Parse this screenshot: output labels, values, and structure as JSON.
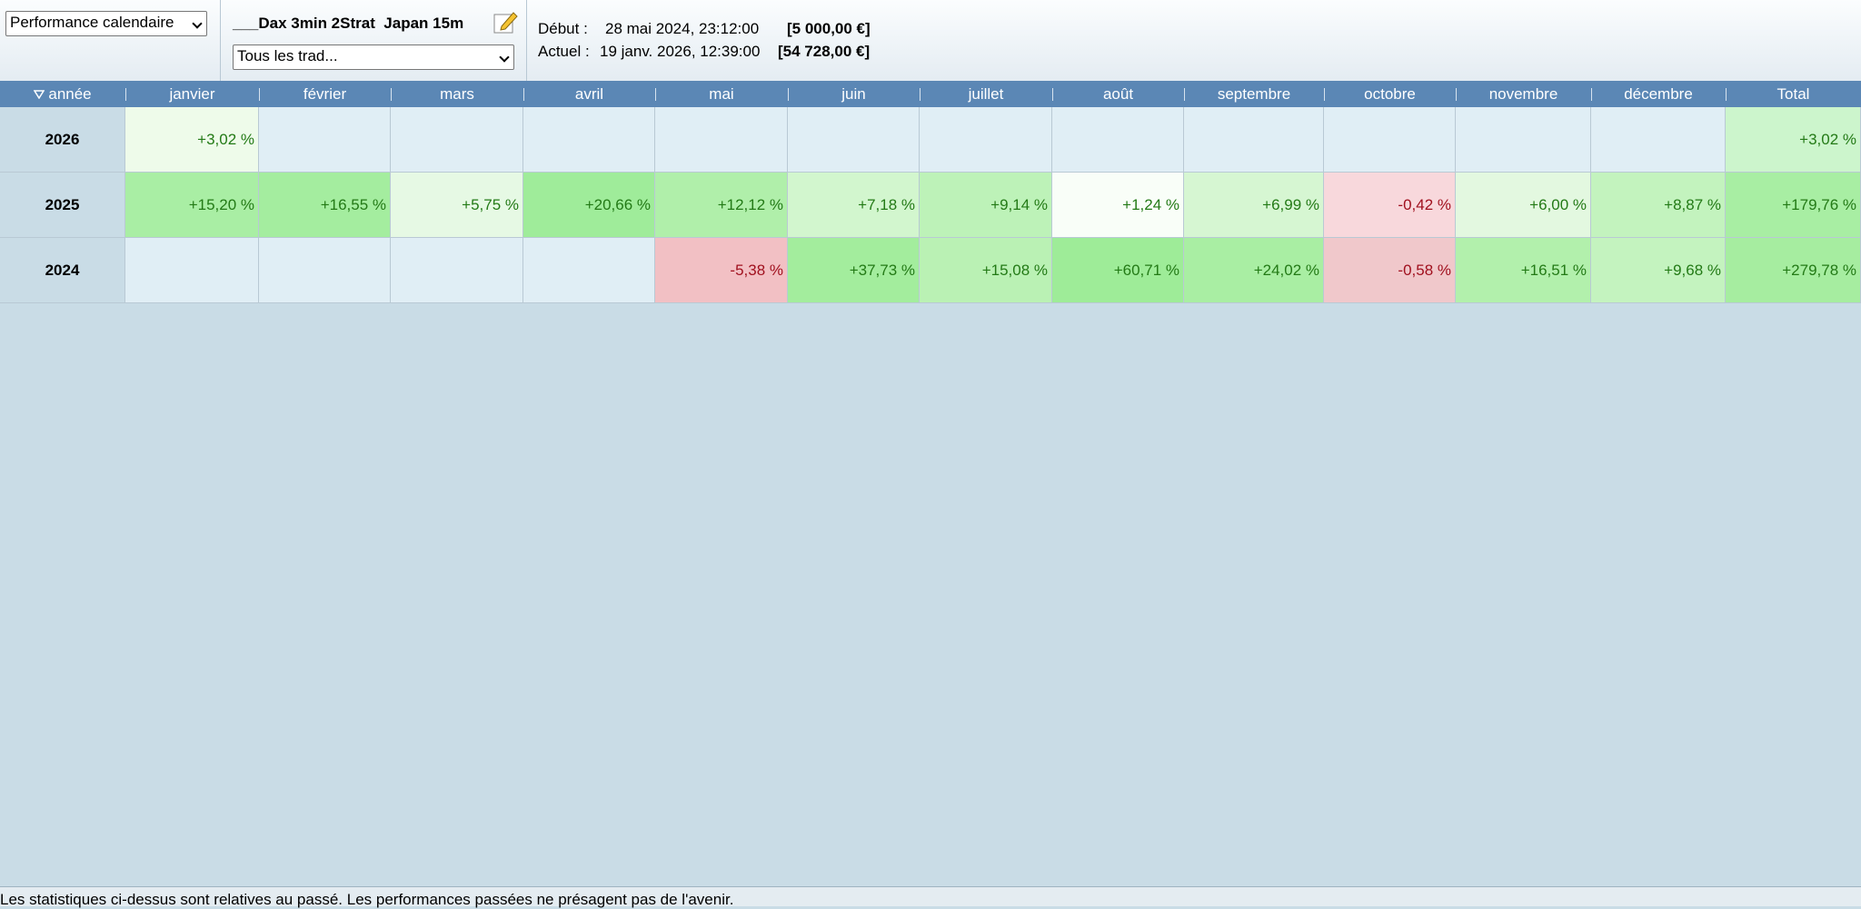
{
  "toolbar": {
    "view_select": "Performance calendaire",
    "strategy": "___Dax 3min 2Strat  Japan 15m",
    "trade_filter": "Tous les trad...",
    "start_label": "Début :",
    "start_date": "28 mai 2024, 23:12:00",
    "start_value": "[5 000,00 €]",
    "current_label": "Actuel :",
    "current_date": "19 janv. 2026, 12:39:00",
    "current_value": "[54 728,00 €]"
  },
  "table": {
    "columns": [
      "année",
      "janvier",
      "février",
      "mars",
      "avril",
      "mai",
      "juin",
      "juillet",
      "août",
      "septembre",
      "octobre",
      "novembre",
      "décembre",
      "Total"
    ],
    "rows": [
      {
        "year": "2026",
        "cells": [
          "+3,02 %",
          null,
          null,
          null,
          null,
          null,
          null,
          null,
          null,
          null,
          null,
          null,
          "+3,02 %"
        ],
        "colors": [
          "#eefbea",
          "#e0eef5",
          "#e0eef5",
          "#e0eef5",
          "#e0eef5",
          "#e0eef5",
          "#e0eef5",
          "#e0eef5",
          "#e0eef5",
          "#e0eef5",
          "#e0eef5",
          "#e0eef5",
          "#ccf5cc"
        ]
      },
      {
        "year": "2025",
        "cells": [
          "+15,20 %",
          "+16,55 %",
          "+5,75 %",
          "+20,66 %",
          "+12,12 %",
          "+7,18 %",
          "+9,14 %",
          "+1,24 %",
          "+6,99 %",
          "-0,42 %",
          "+6,00 %",
          "+8,87 %",
          "+179,76 %"
        ],
        "colors": [
          "#a9eea4",
          "#a4ed9f",
          "#e6f9e4",
          "#9fec9a",
          "#b0efaa",
          "#d2f6ce",
          "#bdf2b8",
          "#f9fef8",
          "#d6f6d2",
          "#f8d8dc",
          "#e3f8e0",
          "#c3f3be",
          "#a8eea3"
        ]
      },
      {
        "year": "2024",
        "cells": [
          null,
          null,
          null,
          null,
          "-5,38 %",
          "+37,73 %",
          "+15,08 %",
          "+60,71 %",
          "+24,02 %",
          "-0,58 %",
          "+16,51 %",
          "+9,68 %",
          "+279,78 %"
        ],
        "colors": [
          "#e0eef5",
          "#e0eef5",
          "#e0eef5",
          "#e0eef5",
          "#f2c0c4",
          "#a3ed9d",
          "#baf1b4",
          "#9eec98",
          "#a9eea3",
          "#f0c8cb",
          "#b2f0ac",
          "#c4f3bf",
          "#a6eda0"
        ]
      }
    ]
  },
  "footer": {
    "text": "Les statistiques ci-dessus sont relatives au passé. Les performances passées ne présagent pas de l'avenir."
  }
}
